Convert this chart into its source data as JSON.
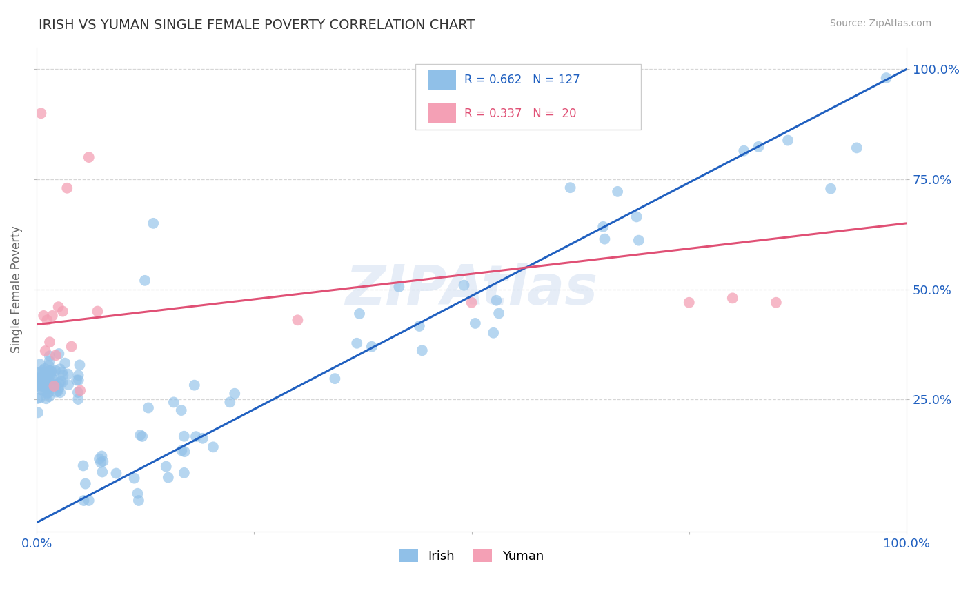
{
  "title": "IRISH VS YUMAN SINGLE FEMALE POVERTY CORRELATION CHART",
  "source_text": "Source: ZipAtlas.com",
  "ylabel": "Single Female Poverty",
  "watermark": "ZIPAtlas",
  "x_tick_labels_show": [
    "0.0%",
    "100.0%"
  ],
  "x_tick_positions_show": [
    0.0,
    1.0
  ],
  "y_tick_labels_right": [
    "25.0%",
    "50.0%",
    "75.0%",
    "100.0%"
  ],
  "y_ticks_right": [
    0.25,
    0.5,
    0.75,
    1.0
  ],
  "xlim": [
    0.0,
    1.0
  ],
  "ylim": [
    -0.05,
    1.05
  ],
  "irish_color": "#90C0E8",
  "yuman_color": "#F4A0B5",
  "irish_line_color": "#2060C0",
  "yuman_line_color": "#E05075",
  "irish_R": 0.662,
  "irish_N": 127,
  "yuman_R": 0.337,
  "yuman_N": 20,
  "legend_irish": "Irish",
  "legend_yuman": "Yuman",
  "background_color": "#ffffff",
  "grid_color": "#cccccc",
  "title_color": "#333333",
  "axis_label_color": "#666666",
  "legend_R_color": "#2060C0",
  "legend_R_yuman_color": "#E05075",
  "irish_line_x0": 0.0,
  "irish_line_y0": -0.03,
  "irish_line_x1": 1.0,
  "irish_line_y1": 1.0,
  "yuman_line_x0": 0.0,
  "yuman_line_y0": 0.42,
  "yuman_line_x1": 1.0,
  "yuman_line_y1": 0.65
}
